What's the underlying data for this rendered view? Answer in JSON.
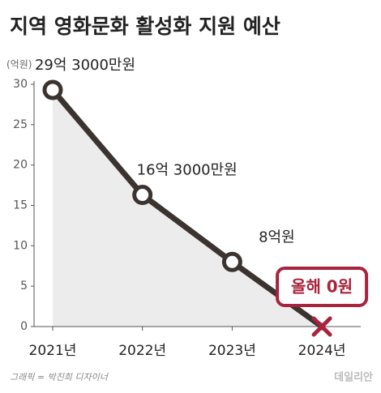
{
  "chart_data": {
    "type": "line",
    "title": "지역 영화문화 활성화 지원 예산",
    "unit_label": "(억원)",
    "categories": [
      "2021년",
      "2022년",
      "2023년",
      "2024년"
    ],
    "values": [
      29.3,
      16.3,
      8,
      0
    ],
    "value_labels": [
      "29억 3000만원",
      "16억 3000만원",
      "8억원",
      "올해 0원"
    ],
    "color": "#3a3330",
    "area_color": "#ececec",
    "highlight_color": "#a8233d",
    "ylim": [
      0,
      30
    ],
    "yticks": [
      0,
      5,
      10,
      15,
      20,
      25,
      30
    ]
  },
  "footer": {
    "credit": "그래픽 = 박진희 디자이너",
    "logo": "데일리안"
  }
}
